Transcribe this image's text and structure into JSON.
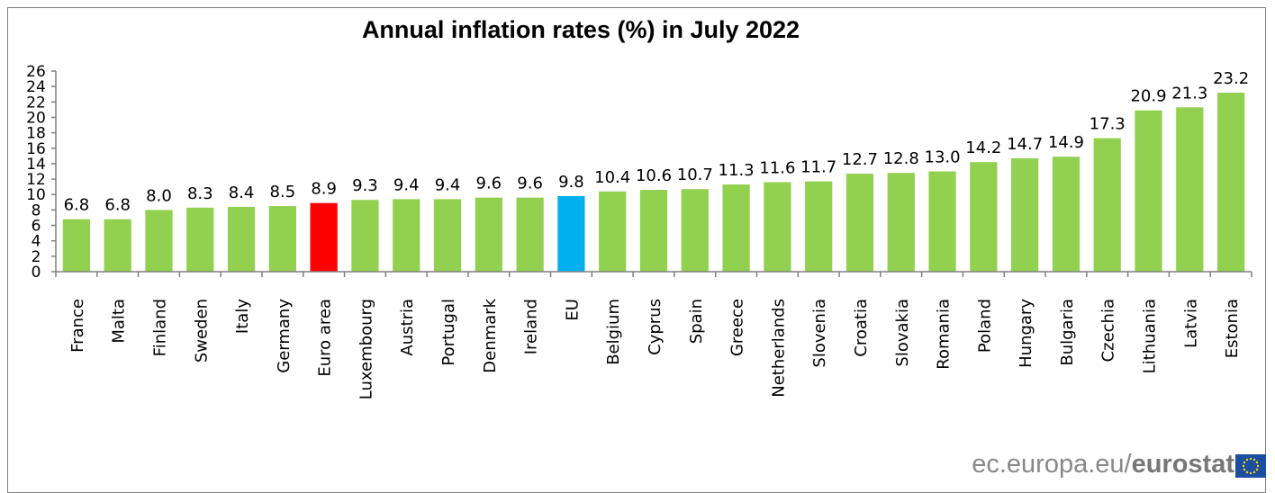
{
  "chart_data": {
    "type": "bar",
    "title": "Annual inflation rates (%) in July 2022",
    "categories": [
      "France",
      "Malta",
      "Finland",
      "Sweden",
      "Italy",
      "Germany",
      "Euro area",
      "Luxembourg",
      "Austria",
      "Portugal",
      "Denmark",
      "Ireland",
      "EU",
      "Belgium",
      "Cyprus",
      "Spain",
      "Greece",
      "Netherlands",
      "Slovenia",
      "Croatia",
      "Slovakia",
      "Romania",
      "Poland",
      "Hungary",
      "Bulgaria",
      "Czechia",
      "Lithuania",
      "Latvia",
      "Estonia"
    ],
    "values": [
      6.8,
      6.8,
      8.0,
      8.3,
      8.4,
      8.5,
      8.9,
      9.3,
      9.4,
      9.4,
      9.6,
      9.6,
      9.8,
      10.4,
      10.6,
      10.7,
      11.3,
      11.6,
      11.7,
      12.7,
      12.8,
      13.0,
      14.2,
      14.7,
      14.9,
      17.3,
      20.9,
      21.3,
      23.2
    ],
    "value_labels": [
      "6.8",
      "6.8",
      "8.0",
      "8.3",
      "8.4",
      "8.5",
      "8.9",
      "9.3",
      "9.4",
      "9.4",
      "9.6",
      "9.6",
      "9.8",
      "10.4",
      "10.6",
      "10.7",
      "11.3",
      "11.6",
      "11.7",
      "12.7",
      "12.8",
      "13.0",
      "14.2",
      "14.7",
      "14.9",
      "17.3",
      "20.9",
      "21.3",
      "23.2"
    ],
    "ylim": [
      0,
      26
    ],
    "yticks": [
      "0",
      "2",
      "4",
      "6",
      "8",
      "10",
      "12",
      "14",
      "16",
      "18",
      "20",
      "22",
      "24",
      "26"
    ],
    "grid": false,
    "xlabel": "",
    "ylabel": "",
    "colors": {
      "default": "#92d050",
      "Euro area": "#ff0000",
      "EU": "#00b0f0"
    }
  },
  "footer": {
    "source_prefix": "ec.europa.eu/",
    "source_brand": "eurostat"
  }
}
